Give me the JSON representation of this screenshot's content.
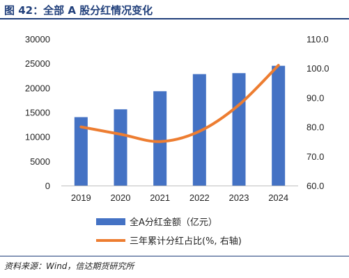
{
  "title": "图 42：全部 A 股分红情况变化",
  "source": "资料来源：Wind，信达期货研究所",
  "colors": {
    "bar": "#4472c4",
    "line": "#ed7d31",
    "heading": "#1f3e7a"
  },
  "chart_data": {
    "type": "bar+line",
    "categories": [
      "2019",
      "2020",
      "2021",
      "2022",
      "2023",
      "2024"
    ],
    "series": [
      {
        "name": "全A分红金额（亿元）",
        "type": "bar",
        "axis": "left",
        "values": [
          14000,
          15600,
          19300,
          22800,
          23000,
          24500
        ]
      },
      {
        "name": "三年累计分红占比(%, 右轴)",
        "type": "line",
        "axis": "right",
        "values": [
          80.0,
          77.5,
          75.0,
          78.5,
          87.5,
          101.0
        ]
      }
    ],
    "left_axis": {
      "ylim": [
        0,
        30000
      ],
      "ticks": [
        "0",
        "5000",
        "10000",
        "15000",
        "20000",
        "25000",
        "30000"
      ]
    },
    "right_axis": {
      "ylim": [
        60,
        110
      ],
      "ticks": [
        "60.0",
        "70.0",
        "80.0",
        "90.0",
        "100.0",
        "110.0"
      ]
    },
    "grid": false,
    "legend_position": "bottom"
  }
}
